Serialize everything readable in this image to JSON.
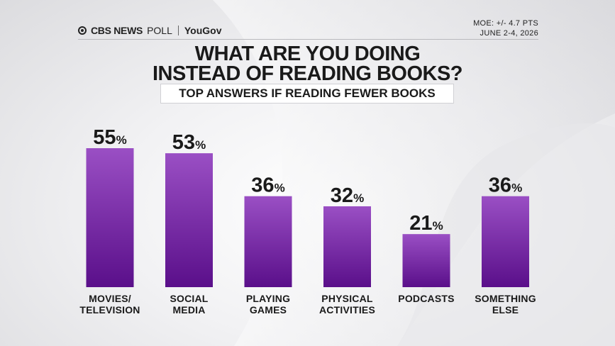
{
  "header": {
    "brand_cbs": "CBS NEWS",
    "brand_poll": "POLL",
    "brand_partner": "YouGov",
    "moe": "MOE: +/- 4.7 PTS",
    "dates": "JUNE 2-4, 2026"
  },
  "title_line1": "WHAT ARE YOU DOING",
  "title_line2": "INSTEAD OF READING BOOKS?",
  "subtitle": "TOP ANSWERS IF READING FEWER BOOKS",
  "colors": {
    "bar_top": "#9a4fc4",
    "bar_bottom": "#5a0f8a"
  },
  "chart_data": {
    "type": "bar",
    "title": "WHAT ARE YOU DOING INSTEAD OF READING BOOKS?",
    "subtitle": "TOP ANSWERS IF READING FEWER BOOKS",
    "categories": [
      [
        "MOVIES/",
        "TELEVISION"
      ],
      [
        "SOCIAL",
        "MEDIA"
      ],
      [
        "PLAYING",
        "GAMES"
      ],
      [
        "PHYSICAL",
        "ACTIVITIES"
      ],
      [
        "PODCASTS"
      ],
      [
        "SOMETHING",
        "ELSE"
      ]
    ],
    "values": [
      55,
      53,
      36,
      32,
      21,
      36
    ],
    "value_suffix": "%",
    "ylim": [
      0,
      55
    ],
    "grid": false,
    "legend": "none"
  }
}
